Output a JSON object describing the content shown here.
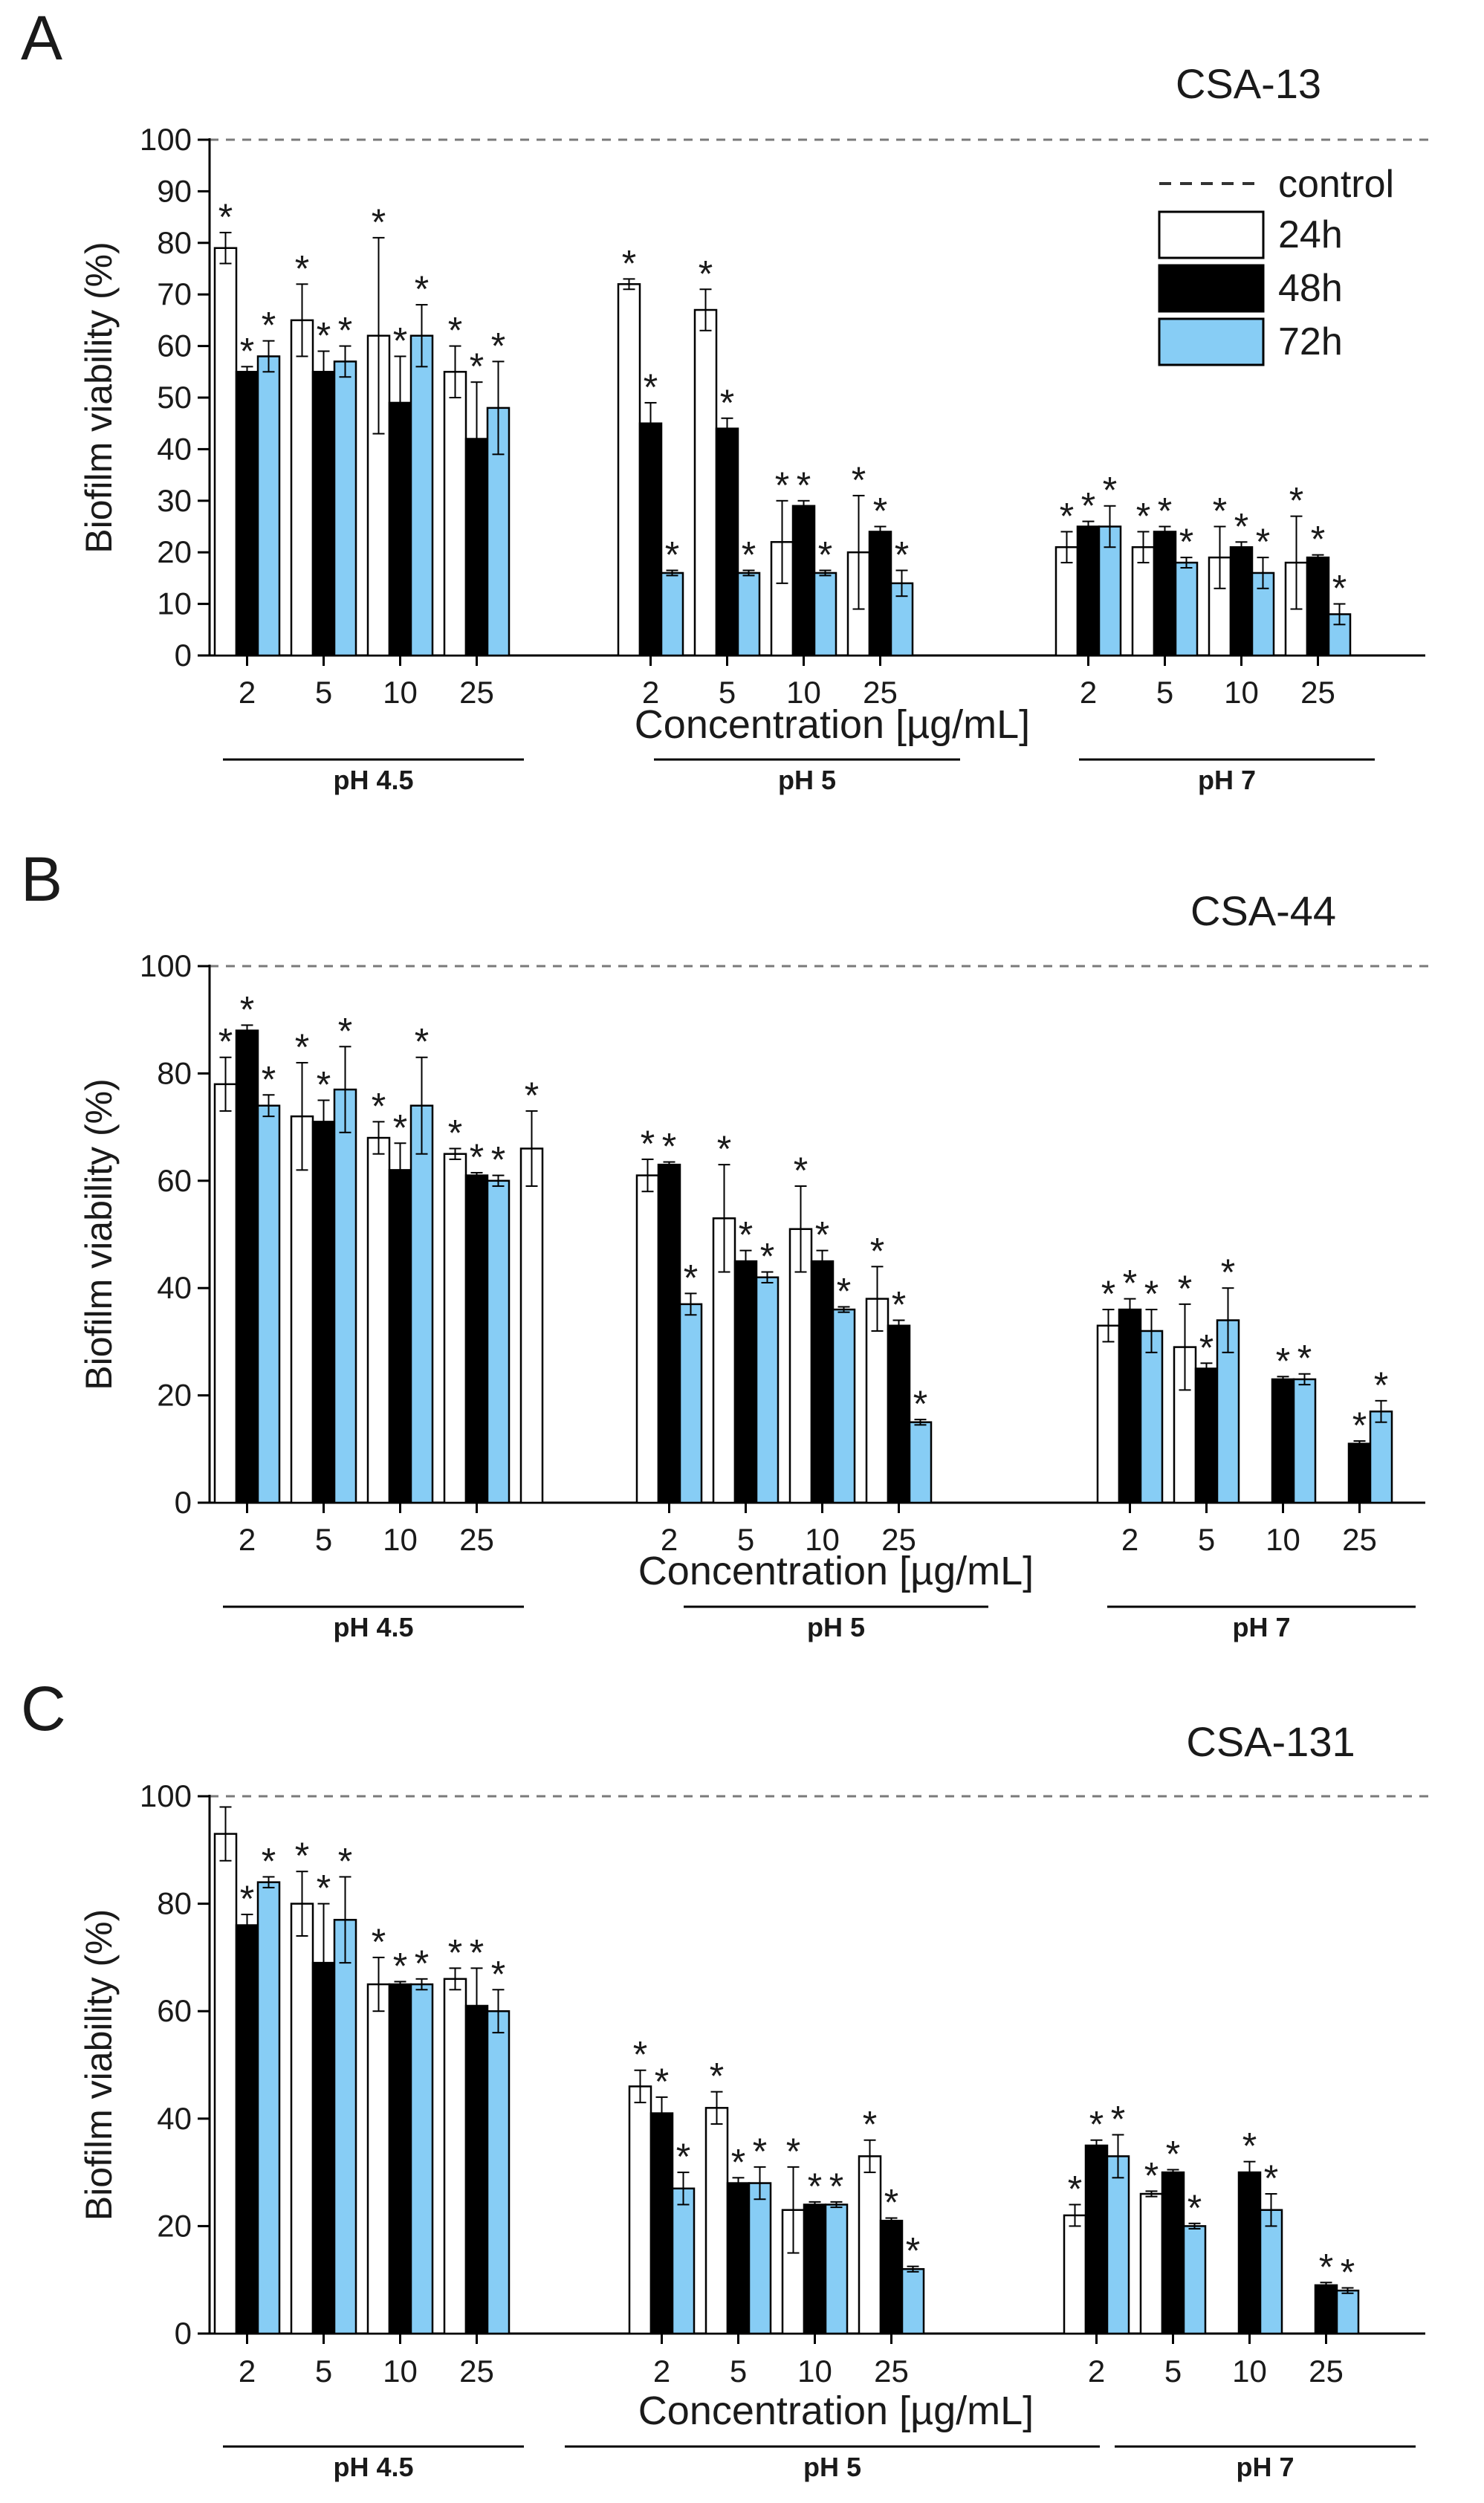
{
  "figure": {
    "series_names": [
      "24h",
      "48h",
      "72h"
    ],
    "control_label": "control",
    "colors": {
      "24h": "#ffffff",
      "48h": "#000000",
      "72h": "#87cdf5",
      "outline": "#000000",
      "control_line": "#7a7a7a"
    },
    "star_symbol": "*"
  },
  "chart_data": [
    {
      "panel": "A",
      "type": "bar",
      "title": "CSA-13",
      "ylabel": "Biofilm  viability (%)",
      "xlabel": "Concentration [µg/mL]",
      "ylim": [
        0,
        100
      ],
      "yticks": [
        0,
        10,
        20,
        30,
        40,
        50,
        60,
        70,
        80,
        90,
        100
      ],
      "control_value": 100,
      "legend": true,
      "legend_position": "top-right",
      "groups": [
        {
          "label": "pH 4.5",
          "categories": [
            "2",
            "5",
            "10",
            "25"
          ],
          "series": [
            {
              "name": "24h",
              "values": [
                79,
                65,
                62,
                55
              ],
              "errors": [
                3,
                7,
                19,
                5
              ],
              "stars": [
                true,
                true,
                true,
                true
              ]
            },
            {
              "name": "48h",
              "values": [
                55,
                55,
                49,
                42
              ],
              "errors": [
                1,
                4,
                9,
                11
              ],
              "stars": [
                true,
                true,
                true,
                true
              ]
            },
            {
              "name": "72h",
              "values": [
                58,
                57,
                62,
                48
              ],
              "errors": [
                3,
                3,
                6,
                9
              ],
              "stars": [
                true,
                true,
                true,
                true
              ]
            }
          ]
        },
        {
          "label": "pH 5",
          "categories": [
            "2",
            "5",
            "10",
            "25"
          ],
          "series": [
            {
              "name": "24h",
              "values": [
                72,
                67,
                22,
                20
              ],
              "errors": [
                1,
                4,
                8,
                11
              ],
              "stars": [
                true,
                true,
                true,
                true
              ]
            },
            {
              "name": "48h",
              "values": [
                45,
                44,
                29,
                24
              ],
              "errors": [
                4,
                2,
                1,
                1
              ],
              "stars": [
                true,
                true,
                true,
                true
              ]
            },
            {
              "name": "72h",
              "values": [
                16,
                16,
                16,
                14
              ],
              "errors": [
                0.5,
                0.5,
                0.5,
                2.5
              ],
              "stars": [
                true,
                true,
                true,
                true
              ]
            }
          ]
        },
        {
          "label": "pH 7",
          "categories": [
            "2",
            "5",
            "10",
            "25"
          ],
          "series": [
            {
              "name": "24h",
              "values": [
                21,
                21,
                19,
                18
              ],
              "errors": [
                3,
                3,
                6,
                9
              ],
              "stars": [
                true,
                true,
                true,
                true
              ]
            },
            {
              "name": "48h",
              "values": [
                25,
                24,
                21,
                19
              ],
              "errors": [
                1,
                1,
                1,
                0.5
              ],
              "stars": [
                true,
                true,
                true,
                true
              ]
            },
            {
              "name": "72h",
              "values": [
                25,
                18,
                16,
                8
              ],
              "errors": [
                4,
                1,
                3,
                2
              ],
              "stars": [
                true,
                true,
                true,
                true
              ]
            }
          ]
        }
      ]
    },
    {
      "panel": "B",
      "type": "bar",
      "title": "CSA-44",
      "ylabel": "Biofilm  viability (%)",
      "xlabel": "Concentration [µg/mL]",
      "ylim": [
        0,
        100
      ],
      "yticks": [
        0,
        20,
        40,
        60,
        80,
        100
      ],
      "control_value": 100,
      "legend": false,
      "extra_bars": [
        {
          "after_group": 0,
          "series": "24h",
          "value": 66,
          "error": 7,
          "star": true
        }
      ],
      "groups": [
        {
          "label": "pH 4.5",
          "categories": [
            "2",
            "5",
            "10",
            "25"
          ],
          "series": [
            {
              "name": "24h",
              "values": [
                78,
                72,
                68,
                65
              ],
              "errors": [
                5,
                10,
                3,
                1
              ],
              "stars": [
                true,
                true,
                true,
                true
              ]
            },
            {
              "name": "48h",
              "values": [
                88,
                71,
                62,
                61
              ],
              "errors": [
                1,
                4,
                5,
                0.5
              ],
              "stars": [
                true,
                true,
                true,
                true
              ]
            },
            {
              "name": "72h",
              "values": [
                74,
                77,
                74,
                60
              ],
              "errors": [
                2,
                8,
                9,
                1
              ],
              "stars": [
                true,
                true,
                true,
                true
              ]
            }
          ]
        },
        {
          "label": "pH 5",
          "categories": [
            "2",
            "5",
            "10",
            "25"
          ],
          "series": [
            {
              "name": "24h",
              "values": [
                61,
                53,
                51,
                38
              ],
              "errors": [
                3,
                10,
                8,
                6
              ],
              "stars": [
                true,
                true,
                true,
                true
              ]
            },
            {
              "name": "48h",
              "values": [
                63,
                45,
                45,
                33
              ],
              "errors": [
                0.5,
                2,
                2,
                1
              ],
              "stars": [
                true,
                true,
                true,
                true
              ]
            },
            {
              "name": "72h",
              "values": [
                37,
                42,
                36,
                15
              ],
              "errors": [
                2,
                1,
                0.5,
                0.5
              ],
              "stars": [
                true,
                true,
                true,
                true
              ]
            }
          ]
        },
        {
          "label": "pH 7",
          "categories": [
            "2",
            "5",
            "10",
            "25"
          ],
          "series": [
            {
              "name": "24h",
              "values": [
                33,
                29,
                null,
                null
              ],
              "errors": [
                3,
                8,
                null,
                null
              ],
              "stars": [
                true,
                true,
                false,
                false
              ]
            },
            {
              "name": "48h",
              "values": [
                36,
                25,
                23,
                11
              ],
              "errors": [
                2,
                1,
                0.5,
                0.5
              ],
              "stars": [
                true,
                true,
                true,
                true
              ]
            },
            {
              "name": "72h",
              "values": [
                32,
                34,
                23,
                17
              ],
              "errors": [
                4,
                6,
                1,
                2
              ],
              "stars": [
                true,
                true,
                true,
                true
              ]
            }
          ]
        }
      ]
    },
    {
      "panel": "C",
      "type": "bar",
      "title": "CSA-131",
      "ylabel": "Biofilm  viability (%)",
      "xlabel": "Concentration [µg/mL]",
      "ylim": [
        0,
        100
      ],
      "yticks": [
        0,
        20,
        40,
        60,
        80,
        100
      ],
      "control_value": 100,
      "legend": false,
      "groups": [
        {
          "label": "pH 4.5",
          "categories": [
            "2",
            "5",
            "10",
            "25"
          ],
          "series": [
            {
              "name": "24h",
              "values": [
                93,
                80,
                65,
                66
              ],
              "errors": [
                5,
                6,
                5,
                2
              ],
              "stars": [
                false,
                true,
                true,
                true
              ]
            },
            {
              "name": "48h",
              "values": [
                76,
                69,
                65,
                61
              ],
              "errors": [
                2,
                11,
                0.5,
                7
              ],
              "stars": [
                true,
                true,
                true,
                true
              ]
            },
            {
              "name": "72h",
              "values": [
                84,
                77,
                65,
                60
              ],
              "errors": [
                1,
                8,
                1,
                4
              ],
              "stars": [
                true,
                true,
                true,
                true
              ]
            }
          ]
        },
        {
          "label": "pH 5",
          "categories": [
            "2",
            "5",
            "10",
            "25"
          ],
          "series": [
            {
              "name": "24h",
              "values": [
                46,
                42,
                23,
                33
              ],
              "errors": [
                3,
                3,
                8,
                3
              ],
              "stars": [
                true,
                true,
                true,
                true
              ]
            },
            {
              "name": "48h",
              "values": [
                41,
                28,
                24,
                21
              ],
              "errors": [
                3,
                1,
                0.5,
                0.5
              ],
              "stars": [
                true,
                true,
                true,
                true
              ]
            },
            {
              "name": "72h",
              "values": [
                27,
                28,
                24,
                12
              ],
              "errors": [
                3,
                3,
                0.5,
                0.5
              ],
              "stars": [
                true,
                true,
                true,
                true
              ]
            }
          ]
        },
        {
          "label": "pH 7",
          "categories": [
            "2",
            "5",
            "10",
            "25"
          ],
          "series": [
            {
              "name": "24h",
              "values": [
                22,
                26,
                null,
                null
              ],
              "errors": [
                2,
                0.5,
                null,
                null
              ],
              "stars": [
                true,
                true,
                false,
                false
              ]
            },
            {
              "name": "48h",
              "values": [
                35,
                30,
                30,
                9
              ],
              "errors": [
                1,
                0.5,
                2,
                0.5
              ],
              "stars": [
                true,
                true,
                true,
                true
              ]
            },
            {
              "name": "72h",
              "values": [
                33,
                20,
                23,
                8
              ],
              "errors": [
                4,
                0.5,
                3,
                0.5
              ],
              "stars": [
                true,
                true,
                true,
                true
              ]
            }
          ]
        }
      ]
    }
  ]
}
